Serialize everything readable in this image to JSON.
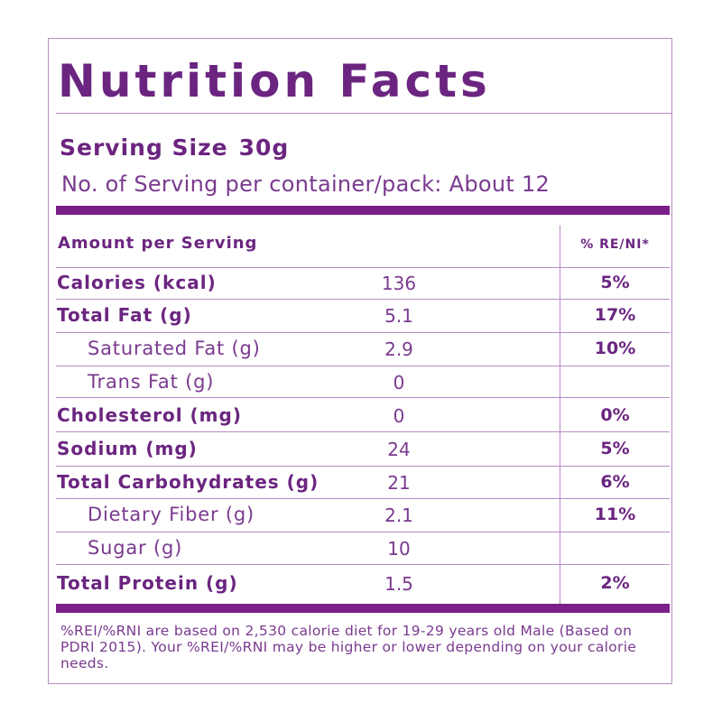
{
  "title": "Nutrition Facts",
  "serving": {
    "label": "Serving Size",
    "value": "30g"
  },
  "servings_per_pack": "No. of Serving per container/pack: About 12",
  "table_header": {
    "amount": "Amount per Serving",
    "percent": "% RE/NI*"
  },
  "rows": [
    {
      "name": "Calories (kcal)",
      "amount": "136",
      "percent": "5%"
    },
    {
      "name": "Total Fat (g)",
      "amount": "5.1",
      "percent": "17%"
    },
    {
      "name": "Saturated Fat (g)",
      "amount": "2.9",
      "percent": "10%"
    },
    {
      "name": "Trans Fat (g)",
      "amount": "0",
      "percent": ""
    },
    {
      "name": "Cholesterol (mg)",
      "amount": "0",
      "percent": "0%"
    },
    {
      "name": "Sodium (mg)",
      "amount": "24",
      "percent": "5%"
    },
    {
      "name": "Total Carbohydrates (g)",
      "amount": "21",
      "percent": "6%"
    },
    {
      "name": "Dietary Fiber (g)",
      "amount": "2.1",
      "percent": "11%"
    },
    {
      "name": "Sugar (g)",
      "amount": "10",
      "percent": ""
    },
    {
      "name": "Total Protein (g)",
      "amount": "1.5",
      "percent": "2%"
    }
  ],
  "footnote": "%REI/%RNI are based  on 2,530 calorie diet for 19-29 years old Male (Based on PDRI 2015). Your %REI/%RNI  may be higher  or lower depending on your calorie needs.",
  "colors": {
    "text": "#6b2580",
    "bar": "#7a1f88",
    "rule": "#b98ac4"
  }
}
